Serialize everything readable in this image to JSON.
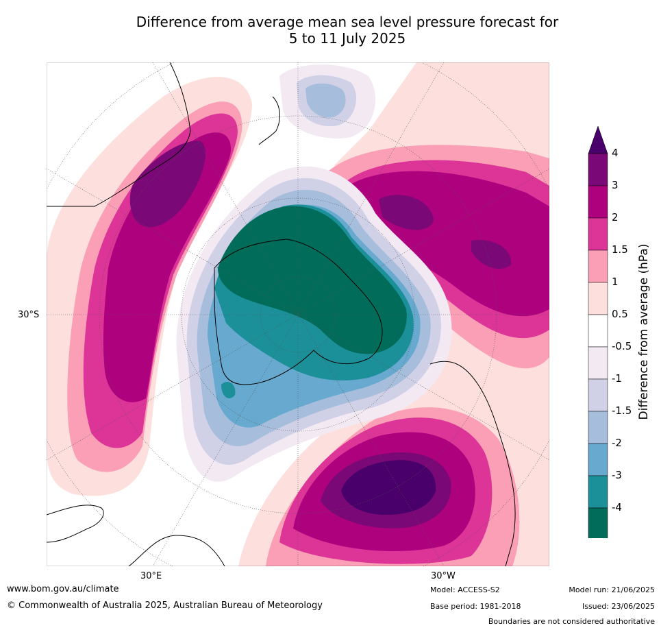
{
  "title": {
    "line1": "Difference from average mean sea level pressure forecast for",
    "line2": "5 to 11 July 2025"
  },
  "map": {
    "projection": "south-polar stereographic",
    "lat_label": "30°S",
    "lon_labels": [
      "30°E",
      "30°W"
    ]
  },
  "colorbar": {
    "title": "Difference from average (hPa)",
    "tick_labels": [
      "4",
      "3",
      "2",
      "1.5",
      "1",
      "0.5",
      "-0.5",
      "-1",
      "-1.5",
      "-2",
      "-3",
      "-4"
    ],
    "colors": [
      "#7a0877",
      "#ae017e",
      "#dd3497",
      "#fa9fb5",
      "#fde0dd",
      "#ffffff",
      "#f2e9f2",
      "#d0d1e6",
      "#a6bddb",
      "#67a9cf",
      "#1c9099",
      "#016c59"
    ],
    "over_color": "#49006a",
    "under_color": "#01664f"
  },
  "footer": {
    "website": "www.bom.gov.au/climate",
    "copyright": "© Commonwealth of Australia 2025, Australian Bureau of Meteorology",
    "model": "Model: ACCESS-S2",
    "base_period": "Base period: 1981-2018",
    "model_run": "Model run: 21/06/2025",
    "issued": "Issued: 23/06/2025",
    "disclaimer": "Boundaries are not considered authoritative"
  }
}
